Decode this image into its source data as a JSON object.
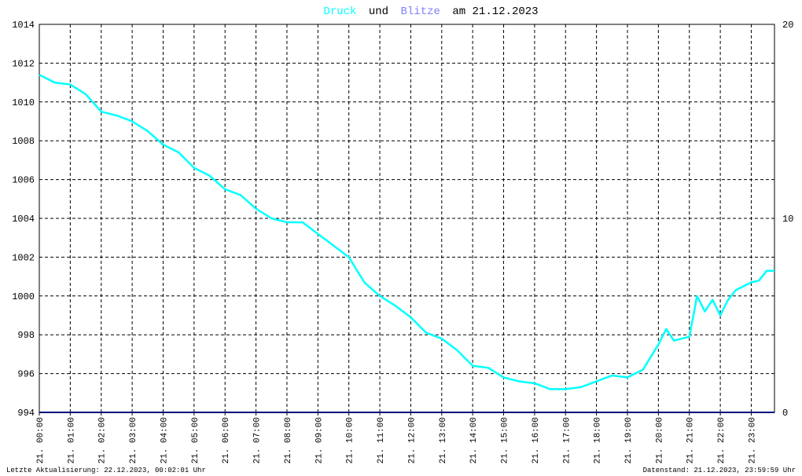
{
  "chart_data": {
    "type": "line",
    "title": [
      "Druck",
      "und",
      "Blitze",
      "am 21.12.2023"
    ],
    "x": [
      0,
      0.5,
      1,
      1.5,
      2,
      2.5,
      3,
      3.5,
      4,
      4.5,
      5,
      5.5,
      6,
      6.5,
      7,
      7.5,
      8,
      8.5,
      9,
      9.5,
      10,
      10.5,
      11,
      11.5,
      12,
      12.5,
      13,
      13.5,
      14,
      14.5,
      15,
      15.5,
      16,
      16.5,
      17,
      17.5,
      18,
      18.5,
      19,
      19.5,
      20,
      20.25,
      20.5,
      21,
      21.25,
      21.5,
      21.75,
      22,
      22.25,
      22.5,
      23,
      23.25,
      23.5,
      23.75
    ],
    "series": [
      {
        "name": "Druck",
        "color": "#00ffff",
        "values": [
          1011.4,
          1011.0,
          1010.9,
          1010.4,
          1009.5,
          1009.3,
          1009.0,
          1008.5,
          1007.8,
          1007.4,
          1006.6,
          1006.2,
          1005.5,
          1005.2,
          1004.5,
          1004.0,
          1003.8,
          1003.8,
          1003.2,
          1002.6,
          1002.0,
          1000.7,
          1000.0,
          999.5,
          998.9,
          998.1,
          997.8,
          997.2,
          996.4,
          996.3,
          995.8,
          995.6,
          995.5,
          995.2,
          995.2,
          995.3,
          995.6,
          995.9,
          995.8,
          996.2,
          997.5,
          998.3,
          997.7,
          997.9,
          1000.0,
          999.2,
          999.8,
          999.0,
          999.8,
          1000.3,
          1000.7,
          1000.8,
          1001.3,
          1001.3
        ]
      },
      {
        "name": "Blitze",
        "color": "#000080",
        "axis": "y2",
        "values": [
          0,
          0,
          0,
          0,
          0,
          0,
          0,
          0,
          0,
          0,
          0,
          0,
          0,
          0,
          0,
          0,
          0,
          0,
          0,
          0,
          0,
          0,
          0,
          0,
          0,
          0,
          0,
          0,
          0,
          0,
          0,
          0,
          0,
          0,
          0,
          0,
          0,
          0,
          0,
          0,
          0,
          0,
          0,
          0,
          0,
          0,
          0,
          0,
          0,
          0,
          0,
          0,
          0,
          0
        ]
      }
    ],
    "title_colors": {
      "text": "#000000",
      "Blitze": "#8080ff"
    },
    "xlim": [
      0,
      23.75
    ],
    "xticks": [
      {
        "value": 0,
        "label": "21. 00:00"
      },
      {
        "value": 1,
        "label": "21. 01:00"
      },
      {
        "value": 2,
        "label": "21. 02:00"
      },
      {
        "value": 3,
        "label": "21. 03:00"
      },
      {
        "value": 4,
        "label": "21. 04:00"
      },
      {
        "value": 5,
        "label": "21. 05:00"
      },
      {
        "value": 6,
        "label": "21. 06:00"
      },
      {
        "value": 7,
        "label": "21. 07:00"
      },
      {
        "value": 8,
        "label": "21. 08:00"
      },
      {
        "value": 9,
        "label": "21. 09:00"
      },
      {
        "value": 10,
        "label": "21. 10:00"
      },
      {
        "value": 11,
        "label": "21. 11:00"
      },
      {
        "value": 12,
        "label": "21. 12:00"
      },
      {
        "value": 13,
        "label": "21. 13:00"
      },
      {
        "value": 14,
        "label": "21. 14:00"
      },
      {
        "value": 15,
        "label": "21. 15:00"
      },
      {
        "value": 16,
        "label": "21. 16:00"
      },
      {
        "value": 17,
        "label": "21. 17:00"
      },
      {
        "value": 18,
        "label": "21. 18:00"
      },
      {
        "value": 19,
        "label": "21. 19:00"
      },
      {
        "value": 20,
        "label": "21. 20:00"
      },
      {
        "value": 21,
        "label": "21. 21:00"
      },
      {
        "value": 22,
        "label": "21. 22:00"
      },
      {
        "value": 23,
        "label": "21. 23:00"
      }
    ],
    "ylim": [
      994,
      1014
    ],
    "yticks": [
      994,
      996,
      998,
      1000,
      1002,
      1004,
      1006,
      1008,
      1010,
      1012,
      1014
    ],
    "y2lim": [
      0,
      20
    ],
    "y2ticks": [
      0,
      10,
      20
    ],
    "grid": true,
    "footer_left": "Letzte Aktualisierung: 22.12.2023, 00:02:01 Uhr",
    "footer_right": "Datenstand: 21.12.2023, 23:59:59 Uhr"
  }
}
